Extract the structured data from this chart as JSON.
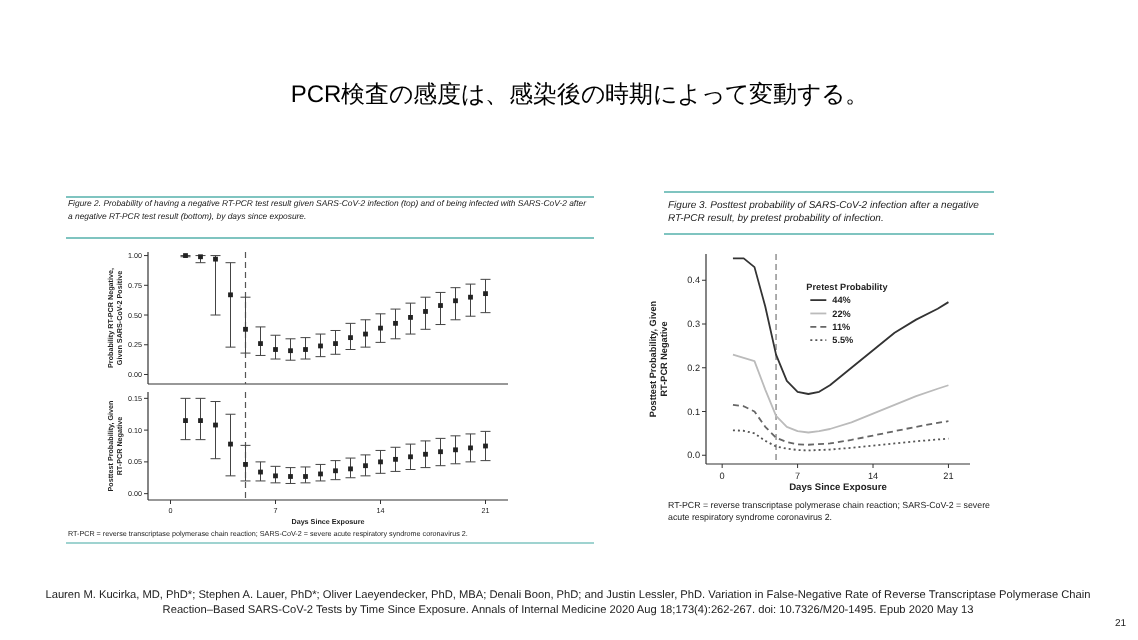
{
  "chart_data": [
    {
      "type": "scatter",
      "title": "PCR検査の感度は、感染後の時期によって変動する。",
      "subtitle": "Figure 2. Probability of having a negative RT-PCR test result given SARS-CoV-2 infection (top) and of being infected with SARS-CoV-2 after a negative RT-PCR test result (bottom), by days since exposure.",
      "ylabel": "Probability RT-PCR Negative, Given SARS-CoV-2 Positive",
      "x": [
        1,
        2,
        3,
        4,
        5,
        6,
        7,
        8,
        9,
        10,
        11,
        12,
        13,
        14,
        15,
        16,
        17,
        18,
        19,
        20,
        21
      ],
      "xlim": [
        -1.5,
        22.5
      ],
      "ylim": [
        -0.08,
        1.03
      ],
      "yticks": [
        {
          "value": 0,
          "label": "0.00"
        },
        {
          "value": 0.25,
          "label": "0.25"
        },
        {
          "value": 0.5,
          "label": "0.50"
        },
        {
          "value": 0.75,
          "label": "0.75"
        },
        {
          "value": 1,
          "label": "1.00"
        }
      ],
      "tick_labels": "y",
      "marker": "square",
      "ref_lines": [
        {
          "axis": "x",
          "value": 5,
          "label": null,
          "line_style": "dashed",
          "color": "#555555"
        }
      ],
      "series": [
        {
          "color": "#222222",
          "values": [
            1.0,
            0.99,
            0.97,
            0.67,
            0.38,
            0.26,
            0.21,
            0.2,
            0.21,
            0.24,
            0.26,
            0.31,
            0.34,
            0.39,
            0.43,
            0.48,
            0.53,
            0.58,
            0.62,
            0.65,
            0.68
          ],
          "errors": [
            [
              0.99,
              1.0
            ],
            [
              0.94,
              1.0
            ],
            [
              0.5,
              1.0
            ],
            [
              0.23,
              0.94
            ],
            [
              0.18,
              0.65
            ],
            [
              0.16,
              0.4
            ],
            [
              0.13,
              0.33
            ],
            [
              0.12,
              0.3
            ],
            [
              0.13,
              0.31
            ],
            [
              0.15,
              0.34
            ],
            [
              0.17,
              0.37
            ],
            [
              0.21,
              0.43
            ],
            [
              0.23,
              0.46
            ],
            [
              0.27,
              0.51
            ],
            [
              0.3,
              0.55
            ],
            [
              0.34,
              0.6
            ],
            [
              0.38,
              0.65
            ],
            [
              0.42,
              0.69
            ],
            [
              0.46,
              0.73
            ],
            [
              0.49,
              0.76
            ],
            [
              0.52,
              0.8
            ]
          ]
        }
      ],
      "annotations": [
        "Lauren M. Kucirka, MD, PhD*; Stephen A. Lauer, PhD*; Oliver Laeyendecker, PhD, MBA; Denali Boon, PhD; and Justin Lessler, PhD. Variation in False-Negative Rate of Reverse Transcriptase Polymerase Chain Reaction–Based SARS-CoV-2 Tests by Time Since Exposure. Annals of Internal Medicine   2020 Aug 18;173(4):262-267. doi: 10.7326/M20-1495. Epub 2020 May 13",
        "21"
      ]
    },
    {
      "type": "scatter",
      "ylabel": "Posttest Probability, Given RT-PCR Negative",
      "xlabel": "Days Since Exposure",
      "x": [
        1,
        2,
        3,
        4,
        5,
        6,
        7,
        8,
        9,
        10,
        11,
        12,
        13,
        14,
        15,
        16,
        17,
        18,
        19,
        20,
        21
      ],
      "xlim": [
        -1.5,
        22.5
      ],
      "xticks": [
        0,
        7,
        14,
        21
      ],
      "ylim": [
        -0.01,
        0.16
      ],
      "yticks": [
        {
          "value": 0,
          "label": "0.00"
        },
        {
          "value": 0.05,
          "label": "0.05"
        },
        {
          "value": 0.1,
          "label": "0.10"
        },
        {
          "value": 0.15,
          "label": "0.15"
        }
      ],
      "marker": "square",
      "ref_lines": [
        {
          "axis": "x",
          "value": 5,
          "label": null,
          "line_style": "dashed",
          "color": "#555555"
        }
      ],
      "series": [
        {
          "color": "#222222",
          "values": [
            0.115,
            0.115,
            0.108,
            0.078,
            0.046,
            0.034,
            0.028,
            0.027,
            0.027,
            0.031,
            0.036,
            0.039,
            0.044,
            0.05,
            0.054,
            0.058,
            0.062,
            0.066,
            0.069,
            0.072,
            0.075
          ],
          "errors": [
            [
              0.085,
              0.15
            ],
            [
              0.085,
              0.15
            ],
            [
              0.055,
              0.145
            ],
            [
              0.028,
              0.125
            ],
            [
              0.02,
              0.076
            ],
            [
              0.02,
              0.05
            ],
            [
              0.017,
              0.043
            ],
            [
              0.016,
              0.041
            ],
            [
              0.017,
              0.042
            ],
            [
              0.02,
              0.046
            ],
            [
              0.022,
              0.052
            ],
            [
              0.025,
              0.056
            ],
            [
              0.028,
              0.061
            ],
            [
              0.032,
              0.068
            ],
            [
              0.035,
              0.073
            ],
            [
              0.038,
              0.078
            ],
            [
              0.041,
              0.083
            ],
            [
              0.044,
              0.087
            ],
            [
              0.047,
              0.091
            ],
            [
              0.05,
              0.094
            ],
            [
              0.052,
              0.098
            ]
          ]
        }
      ],
      "annotations": [
        "RT-PCR = reverse transcriptase polymerase chain reaction; SARS-CoV-2 = severe acute respiratory syndrome coronavirus 2."
      ]
    },
    {
      "type": "line",
      "title": "Figure 3. Posttest probability of SARS-CoV-2 infection after a negative RT-PCR result, by pretest probability of infection.",
      "ylabel": "Posttest Probability, Given RT-PCR Negative",
      "xlabel": "Days Since Exposure",
      "xlim": [
        -1.5,
        23
      ],
      "xticks": [
        0,
        7,
        14,
        21
      ],
      "ylim": [
        -0.02,
        0.46
      ],
      "yticks": [
        {
          "value": 0,
          "label": "0.0"
        },
        {
          "value": 0.1,
          "label": "0.1"
        },
        {
          "value": 0.2,
          "label": "0.2"
        },
        {
          "value": 0.3,
          "label": "0.3"
        },
        {
          "value": 0.4,
          "label": "0.4"
        }
      ],
      "legend": "top right",
      "legend_title": "Pretest Probability",
      "ref_lines": [
        {
          "axis": "x",
          "value": 5,
          "label": null,
          "line_style": "dashed",
          "color": "#777777"
        }
      ],
      "series": [
        {
          "name": "44%",
          "color": "#333333",
          "line_style": "solid",
          "x": [
            1,
            2,
            3,
            4,
            5,
            6,
            7,
            8,
            9,
            10,
            11,
            12,
            14,
            16,
            18,
            20,
            21
          ],
          "values": [
            0.45,
            0.45,
            0.43,
            0.34,
            0.23,
            0.17,
            0.145,
            0.14,
            0.145,
            0.16,
            0.18,
            0.2,
            0.24,
            0.28,
            0.31,
            0.335,
            0.35
          ]
        },
        {
          "name": "22%",
          "color": "#bbbbbb",
          "line_style": "solid",
          "x": [
            1,
            3,
            4,
            5,
            6,
            7,
            8,
            9,
            10,
            12,
            14,
            16,
            18,
            20,
            21
          ],
          "values": [
            0.23,
            0.215,
            0.15,
            0.09,
            0.065,
            0.055,
            0.052,
            0.055,
            0.06,
            0.075,
            0.095,
            0.115,
            0.135,
            0.152,
            0.16
          ]
        },
        {
          "name": "11%",
          "color": "#666666",
          "line_style": "dashed",
          "x": [
            1,
            2,
            3,
            4,
            5,
            6,
            7,
            8,
            10,
            12,
            14,
            16,
            18,
            20,
            21
          ],
          "values": [
            0.115,
            0.112,
            0.1,
            0.065,
            0.04,
            0.03,
            0.025,
            0.024,
            0.027,
            0.035,
            0.045,
            0.055,
            0.065,
            0.074,
            0.078
          ]
        },
        {
          "name": "5.5%",
          "color": "#555555",
          "line_style": "dotted",
          "x": [
            1,
            2,
            3,
            4,
            5,
            6,
            7,
            8,
            10,
            12,
            14,
            16,
            18,
            20,
            21
          ],
          "values": [
            0.057,
            0.056,
            0.05,
            0.033,
            0.02,
            0.015,
            0.012,
            0.011,
            0.013,
            0.017,
            0.022,
            0.027,
            0.032,
            0.036,
            0.038
          ]
        }
      ],
      "annotations": [
        "RT-PCR = reverse transcriptase polymerase chain reaction; SARS-CoV-2 = severe acute respiratory syndrome coronavirus 2."
      ]
    }
  ]
}
